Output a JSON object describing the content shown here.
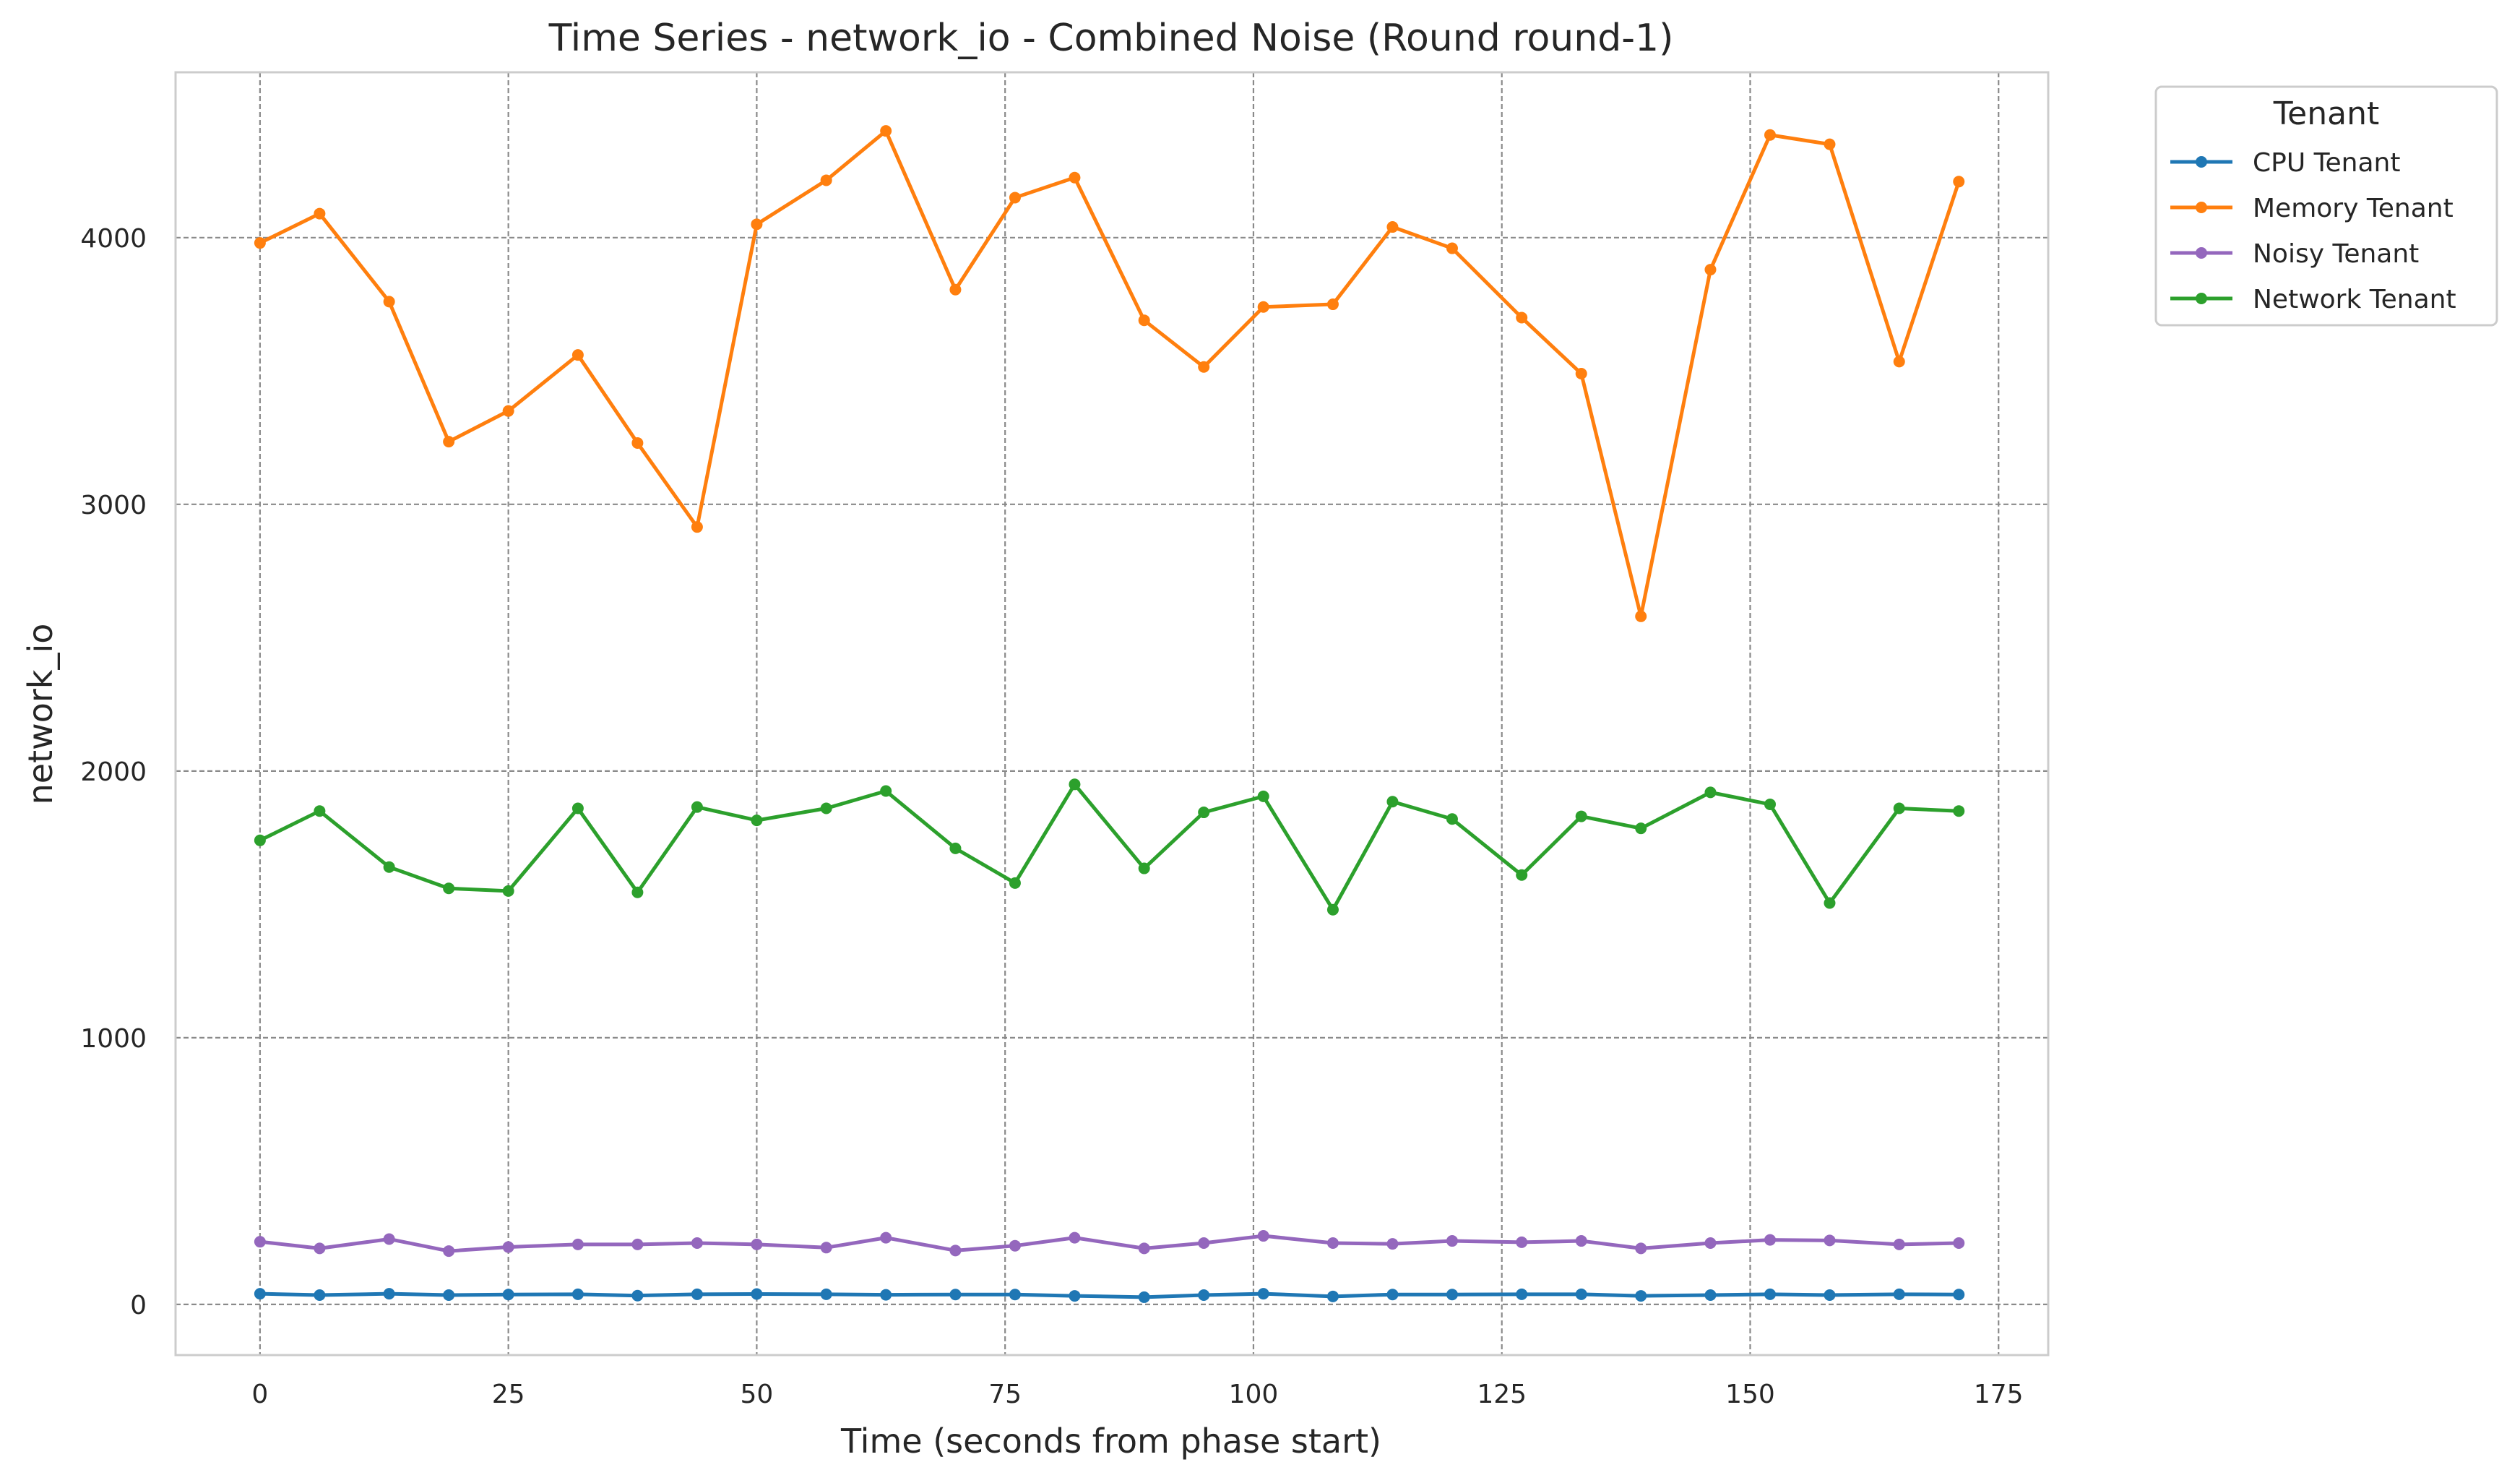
{
  "chart_data": {
    "type": "line",
    "title": "Time Series - network_io - Combined Noise (Round round-1)",
    "xlabel": "Time (seconds from phase start)",
    "ylabel": "network_io",
    "xlim": [
      -8.5,
      180
    ],
    "ylim": [
      -190,
      4620
    ],
    "xticks": [
      0,
      25,
      50,
      75,
      100,
      125,
      150,
      175
    ],
    "yticks": [
      0,
      1000,
      2000,
      3000,
      4000
    ],
    "grid": true,
    "legend": {
      "title": "Tenant",
      "placement": "outside-top-right"
    },
    "x": [
      0,
      6,
      13,
      19,
      25,
      32,
      38,
      44,
      50,
      57,
      63,
      70,
      76,
      82,
      89,
      95,
      101,
      108,
      114,
      120,
      127,
      133,
      139,
      146,
      152,
      158,
      165,
      171
    ],
    "series": [
      {
        "name": "CPU Tenant",
        "color": "#1f77b4",
        "values": [
          40,
          35,
          40,
          35,
          37,
          38,
          33,
          38,
          39,
          38,
          36,
          37,
          37,
          32,
          27,
          35,
          40,
          30,
          37,
          37,
          38,
          38,
          32,
          35,
          38,
          35,
          38,
          37
        ]
      },
      {
        "name": "Memory Tenant",
        "color": "#ff7f0e",
        "values": [
          3980,
          4090,
          3760,
          3235,
          3350,
          3560,
          3230,
          2915,
          4050,
          4215,
          4400,
          3805,
          4150,
          4225,
          3690,
          3515,
          3740,
          3750,
          4040,
          3960,
          3700,
          3490,
          2580,
          3880,
          4385,
          4350,
          3535,
          4210
        ]
      },
      {
        "name": "Noisy Tenant",
        "color": "#9467bd",
        "values": [
          235,
          210,
          245,
          200,
          215,
          225,
          225,
          230,
          225,
          213,
          250,
          202,
          220,
          250,
          210,
          230,
          257,
          230,
          227,
          238,
          233,
          238,
          210,
          230,
          242,
          240,
          225,
          230
        ]
      },
      {
        "name": "Network Tenant",
        "color": "#2ca02c",
        "values": [
          1740,
          1850,
          1640,
          1560,
          1550,
          1860,
          1545,
          1865,
          1815,
          1860,
          1925,
          1710,
          1580,
          1950,
          1635,
          1845,
          1905,
          1480,
          1885,
          1820,
          1610,
          1830,
          1785,
          1920,
          1875,
          1505,
          1860,
          1850
        ]
      }
    ]
  }
}
